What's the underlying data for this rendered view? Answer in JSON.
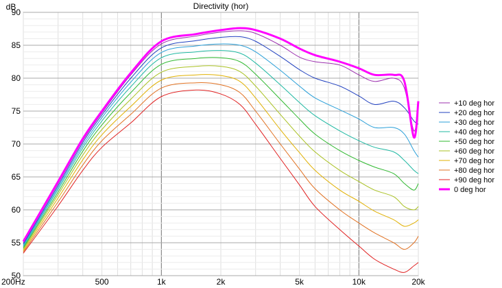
{
  "chart_data": {
    "type": "line",
    "title": "Directivity (hor)",
    "ylabel": "dB",
    "xlabel": "",
    "xscale": "log",
    "xlim": [
      200,
      20000
    ],
    "ylim": [
      50,
      90
    ],
    "x_tick_values": [
      200,
      500,
      1000,
      2000,
      5000,
      10000,
      20000
    ],
    "x_tick_labels": [
      "200Hz",
      "500",
      "1k",
      "2k",
      "5k",
      "10k",
      "20k"
    ],
    "y_tick_values": [
      50,
      55,
      60,
      65,
      70,
      75,
      80,
      85,
      90
    ],
    "y_tick_labels": [
      "50",
      "55",
      "60",
      "65",
      "70",
      "75",
      "80",
      "85",
      "90"
    ],
    "grid": true,
    "legend_position": "right",
    "x": [
      200,
      300,
      400,
      500,
      700,
      1000,
      1500,
      2000,
      2500,
      3000,
      4000,
      5000,
      6000,
      8000,
      10000,
      12000,
      15000,
      17000,
      19000,
      20000
    ],
    "series": [
      {
        "name": "+10 deg hor",
        "color": "#9b2fae",
        "width": 1,
        "values": [
          55.0,
          64.0,
          70.5,
          74.7,
          80.5,
          85.2,
          86.4,
          87.0,
          87.2,
          86.8,
          85.0,
          83.2,
          82.5,
          82.0,
          80.5,
          79.5,
          80.0,
          78.5,
          72.0,
          76.0
        ]
      },
      {
        "name": "+20 deg hor",
        "color": "#1f3fbf",
        "width": 1,
        "values": [
          54.8,
          63.7,
          70.2,
          74.4,
          80.0,
          84.6,
          85.7,
          86.2,
          86.3,
          85.6,
          83.3,
          81.3,
          80.0,
          78.8,
          77.3,
          76.0,
          76.5,
          75.5,
          73.5,
          73.0
        ]
      },
      {
        "name": "+30 deg hor",
        "color": "#2a9fd8",
        "width": 1,
        "values": [
          54.6,
          63.4,
          69.8,
          74.0,
          79.4,
          83.9,
          84.9,
          85.2,
          85.0,
          84.0,
          81.2,
          78.8,
          77.0,
          75.2,
          73.8,
          72.5,
          72.5,
          71.5,
          69.0,
          68.0
        ]
      },
      {
        "name": "+40 deg hor",
        "color": "#1fb8a2",
        "width": 1,
        "values": [
          54.4,
          63.1,
          69.4,
          73.5,
          78.7,
          83.1,
          84.0,
          84.2,
          83.8,
          82.3,
          79.0,
          76.3,
          74.3,
          72.0,
          70.5,
          69.5,
          68.8,
          67.5,
          66.0,
          65.5
        ]
      },
      {
        "name": "+50 deg hor",
        "color": "#2fb82f",
        "width": 1,
        "values": [
          54.2,
          62.7,
          68.9,
          72.9,
          77.8,
          82.1,
          83.0,
          83.1,
          82.5,
          80.6,
          76.8,
          73.8,
          71.5,
          69.0,
          67.5,
          66.5,
          65.5,
          64.0,
          63.0,
          64.0
        ]
      },
      {
        "name": "+60 deg hor",
        "color": "#a8c020",
        "width": 1,
        "values": [
          54.0,
          62.3,
          68.3,
          72.2,
          76.8,
          80.9,
          81.8,
          81.8,
          81.0,
          78.8,
          74.5,
          71.2,
          68.8,
          66.0,
          64.3,
          63.0,
          62.0,
          60.5,
          60.0,
          60.5
        ]
      },
      {
        "name": "+70 deg hor",
        "color": "#e0b000",
        "width": 1,
        "values": [
          53.8,
          61.8,
          67.6,
          71.4,
          75.7,
          79.7,
          80.5,
          80.4,
          79.5,
          77.0,
          72.2,
          68.7,
          66.0,
          63.0,
          61.3,
          59.8,
          58.5,
          57.5,
          58.0,
          58.5
        ]
      },
      {
        "name": "+80 deg hor",
        "color": "#e07020",
        "width": 1,
        "values": [
          53.6,
          61.2,
          66.8,
          70.5,
          74.5,
          78.5,
          79.3,
          79.0,
          77.8,
          75.0,
          70.0,
          66.2,
          63.2,
          60.0,
          58.0,
          56.5,
          55.0,
          54.0,
          55.0,
          56.0
        ]
      },
      {
        "name": "+90 deg hor",
        "color": "#e02020",
        "width": 1,
        "values": [
          53.4,
          60.6,
          66.0,
          69.5,
          73.2,
          77.2,
          78.2,
          77.6,
          76.0,
          73.0,
          67.8,
          63.8,
          60.5,
          57.0,
          54.5,
          52.5,
          51.0,
          50.5,
          51.5,
          52.0
        ]
      },
      {
        "name": "0 deg hor",
        "color": "#ff00ff",
        "width": 3,
        "values": [
          55.2,
          64.3,
          70.8,
          75.0,
          80.8,
          85.6,
          86.7,
          87.3,
          87.6,
          87.3,
          86.0,
          84.5,
          83.5,
          82.5,
          81.5,
          80.5,
          80.5,
          79.5,
          71.0,
          76.5
        ]
      }
    ]
  }
}
